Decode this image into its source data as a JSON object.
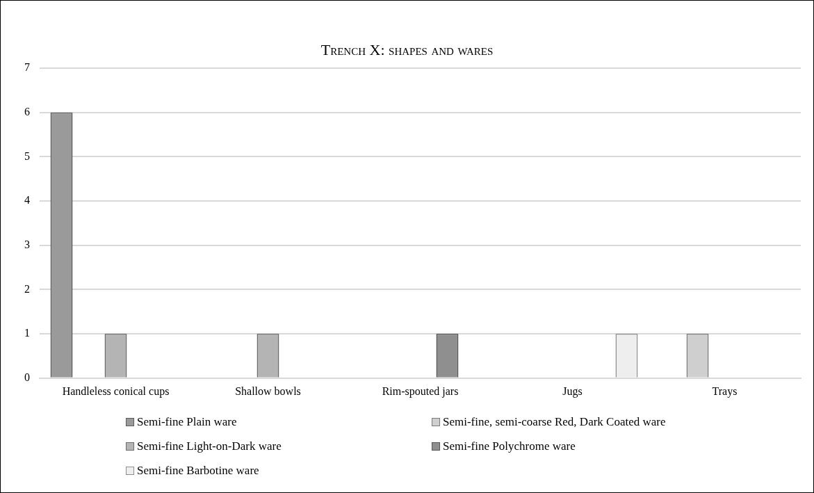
{
  "chart_data": {
    "type": "bar",
    "title": "Trench X: shapes and wares",
    "categories": [
      "Handleless conical cups",
      "Shallow bowls",
      "Rim-spouted jars",
      "Jugs",
      "Trays"
    ],
    "series": [
      {
        "name": "Semi-fine Plain ware",
        "color": "#9a9a9a",
        "values": [
          6,
          0,
          0,
          0,
          0
        ]
      },
      {
        "name": "Semi-fine, semi-coarse Red, Dark Coated ware",
        "color": "#cfcfcf",
        "values": [
          0,
          0,
          0,
          0,
          1
        ]
      },
      {
        "name": "Semi-fine Light-on-Dark ware",
        "color": "#b4b4b4",
        "values": [
          1,
          1,
          0,
          0,
          0
        ]
      },
      {
        "name": "Semi-fine Polychrome ware",
        "color": "#8f8f8f",
        "values": [
          0,
          0,
          1,
          0,
          0
        ]
      },
      {
        "name": "Semi-fine Barbotine ware",
        "color": "#eeeeee",
        "values": [
          0,
          0,
          0,
          1,
          0
        ]
      }
    ],
    "ylim": [
      0,
      7
    ],
    "yticks": [
      0,
      1,
      2,
      3,
      4,
      5,
      6,
      7
    ],
    "grid": "y",
    "legend": "bottom"
  }
}
